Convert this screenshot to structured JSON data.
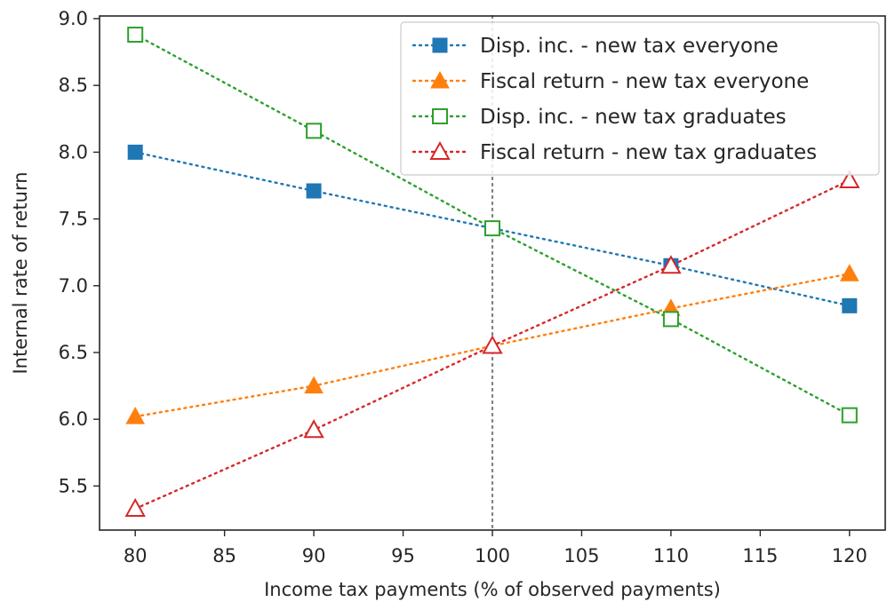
{
  "chart_data": {
    "type": "line",
    "xlabel": "Income tax payments (% of observed payments)",
    "ylabel": "Internal rate of return",
    "xlim": [
      78,
      122
    ],
    "ylim": [
      5.17,
      9.02
    ],
    "xticks": [
      80,
      85,
      90,
      95,
      100,
      105,
      110,
      115,
      120
    ],
    "xtick_labels": [
      "80",
      "85",
      "90",
      "95",
      "100",
      "105",
      "110",
      "115",
      "120"
    ],
    "yticks": [
      5.5,
      6.0,
      6.5,
      7.0,
      7.5,
      8.0,
      8.5,
      9.0
    ],
    "ytick_labels": [
      "5.5",
      "6.0",
      "6.5",
      "7.0",
      "7.5",
      "8.0",
      "8.5",
      "9.0"
    ],
    "grid": false,
    "legend_position": "top-right",
    "reference_line": {
      "x": 100,
      "style": "dotted",
      "color": "#808080"
    },
    "x": [
      80,
      90,
      100,
      110,
      120
    ],
    "series": [
      {
        "name": "Disp. inc. - new tax everyone",
        "values": [
          8.0,
          7.71,
          7.43,
          7.15,
          6.85
        ],
        "color": "#1f77b4",
        "marker": "square",
        "filled": true
      },
      {
        "name": "Fiscal return - new tax everyone",
        "values": [
          6.02,
          6.25,
          6.55,
          6.83,
          7.09
        ],
        "color": "#ff7f0e",
        "marker": "triangle",
        "filled": true
      },
      {
        "name": "Disp. inc. - new tax graduates",
        "values": [
          8.88,
          8.16,
          7.43,
          6.75,
          6.03
        ],
        "color": "#2ca02c",
        "marker": "square",
        "filled": false
      },
      {
        "name": "Fiscal return - new tax graduates",
        "values": [
          5.33,
          5.92,
          6.55,
          7.15,
          7.79
        ],
        "color": "#d62728",
        "marker": "triangle",
        "filled": false
      }
    ]
  }
}
